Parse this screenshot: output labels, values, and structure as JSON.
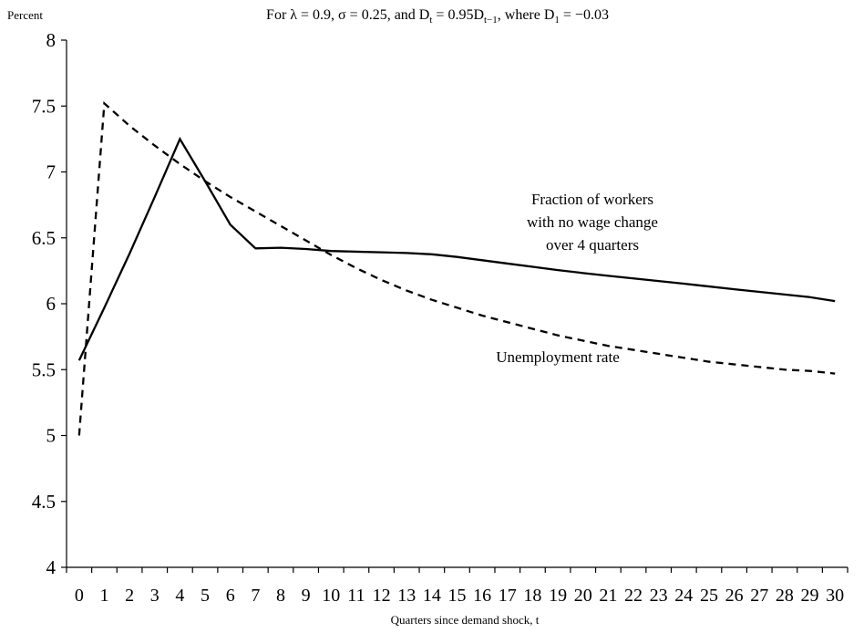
{
  "chart_data": {
    "type": "line",
    "title_parts": {
      "prefix": "For λ = 0.9, σ = 0.25, and D",
      "sub1": "t",
      "mid": " = 0.95D",
      "sub2": "t−1",
      "mid2": ", where D",
      "sub3": "1",
      "suffix": " = −0.03"
    },
    "ylabel": "Percent",
    "xlabel": "Quarters since demand shock, t",
    "ylim": [
      4,
      8
    ],
    "yticks": [
      "4",
      "4.5",
      "5",
      "5.5",
      "6",
      "6.5",
      "7",
      "7.5",
      "8"
    ],
    "xlim": [
      0,
      30
    ],
    "xticks": [
      "0",
      "1",
      "2",
      "3",
      "4",
      "5",
      "6",
      "7",
      "8",
      "9",
      "10",
      "11",
      "12",
      "13",
      "14",
      "15",
      "16",
      "17",
      "18",
      "19",
      "20",
      "21",
      "22",
      "23",
      "24",
      "25",
      "26",
      "27",
      "28",
      "29",
      "30"
    ],
    "grid": false,
    "series": [
      {
        "name": "Fraction of workers with no wage change over 4 quarters",
        "label_lines": [
          "Fraction of workers",
          "with no wage change",
          "over 4 quarters"
        ],
        "style": "solid",
        "color": "#000000",
        "x": [
          0,
          1,
          2,
          3,
          4,
          5,
          6,
          7,
          8,
          9,
          10,
          11,
          12,
          13,
          14,
          15,
          16,
          17,
          18,
          19,
          20,
          21,
          22,
          23,
          24,
          25,
          26,
          27,
          28,
          29,
          30
        ],
        "values": [
          5.57,
          5.97,
          6.38,
          6.81,
          7.25,
          6.93,
          6.6,
          6.42,
          6.425,
          6.415,
          6.4,
          6.395,
          6.39,
          6.385,
          6.375,
          6.355,
          6.33,
          6.305,
          6.28,
          6.255,
          6.233,
          6.212,
          6.192,
          6.172,
          6.152,
          6.131,
          6.11,
          6.09,
          6.07,
          6.05,
          6.02
        ]
      },
      {
        "name": "Unemployment rate",
        "label_lines": [
          "Unemployment rate"
        ],
        "style": "dashed",
        "color": "#000000",
        "x": [
          0,
          1,
          2,
          3,
          4,
          5,
          6,
          7,
          8,
          9,
          10,
          11,
          12,
          13,
          14,
          15,
          16,
          17,
          18,
          19,
          20,
          21,
          22,
          23,
          24,
          25,
          26,
          27,
          28,
          29,
          30
        ],
        "values": [
          5.0,
          7.52,
          7.35,
          7.2,
          7.06,
          6.93,
          6.81,
          6.7,
          6.59,
          6.48,
          6.37,
          6.27,
          6.18,
          6.1,
          6.03,
          5.97,
          5.91,
          5.86,
          5.81,
          5.76,
          5.72,
          5.68,
          5.65,
          5.62,
          5.59,
          5.56,
          5.54,
          5.52,
          5.5,
          5.49,
          5.47
        ]
      }
    ]
  }
}
